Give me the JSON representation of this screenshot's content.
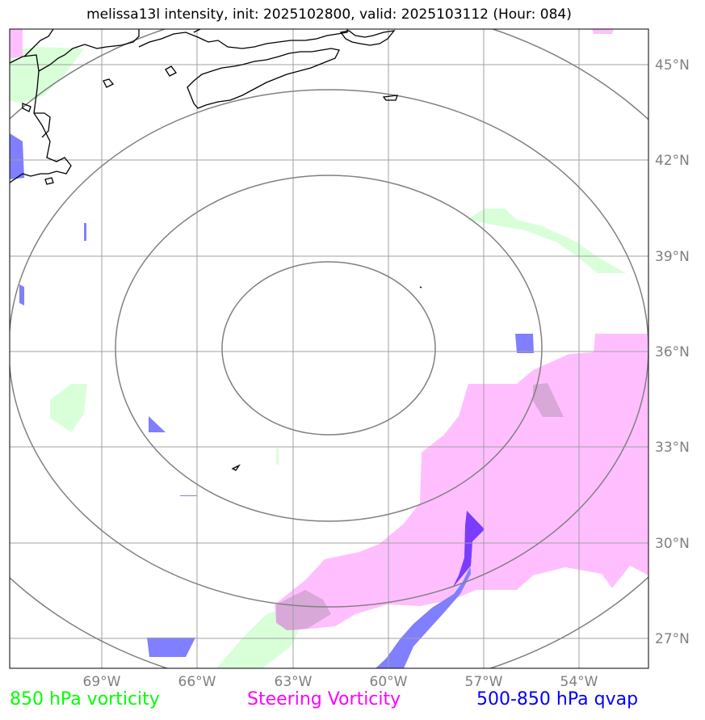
{
  "title": "melissa13l intensity, init: 2025102800, valid: 2025103112 (Hour: 084)",
  "legend": [
    {
      "label": "850 hPa vorticity",
      "color": "#00ff00"
    },
    {
      "label": "Steering Vorticity",
      "color": "#ff00ff"
    },
    {
      "label": "500-850 hPa qvap",
      "color": "#0000ff"
    }
  ],
  "axes": {
    "lon_ticks": [
      "69°W",
      "66°W",
      "63°W",
      "60°W",
      "57°W",
      "54°W"
    ],
    "lat_ticks": [
      "45°N",
      "42°N",
      "39°N",
      "36°N",
      "33°N",
      "30°N",
      "27°N"
    ],
    "lon_range": [
      -71.3,
      -51.2
    ],
    "lat_range": [
      26.1,
      46.2
    ]
  },
  "fields": {
    "vorticity_850_color": "#d9ffd9",
    "steering_vorticity_color": "#ffbfff",
    "qvap_color": "#7f7fff",
    "range_rings": 4,
    "grid": true,
    "coastlines": true
  }
}
